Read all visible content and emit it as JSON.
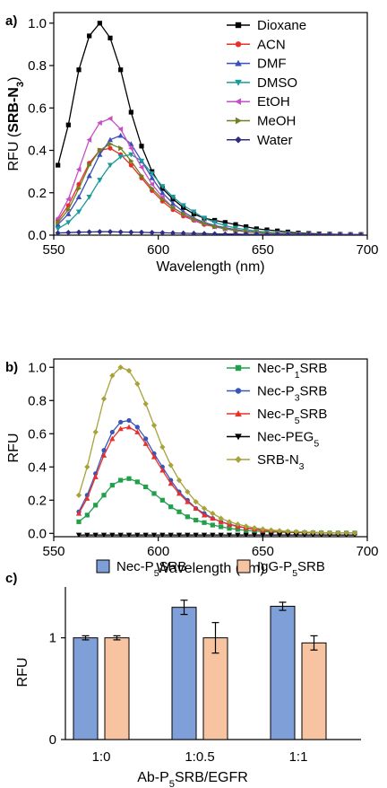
{
  "chart_data": [
    {
      "panel_label": "a)",
      "type": "line",
      "xlabel": "Wavelength (nm)",
      "ylabel_parts": [
        "RFU (",
        "SRB-N",
        "3",
        ")"
      ],
      "xlim": [
        550,
        700
      ],
      "ylim": [
        0,
        1.05
      ],
      "xticks": [
        550,
        600,
        650,
        700
      ],
      "yticks": [
        0.0,
        0.2,
        0.4,
        0.6,
        0.8,
        1.0
      ],
      "ytick_labels": [
        "0.0",
        "0.2",
        "0.4",
        "0.6",
        "0.8",
        "1.0"
      ],
      "legend": "top-right",
      "series": [
        {
          "name": "Dioxane",
          "color": "#000000",
          "marker": "square",
          "x": [
            552,
            557,
            562,
            567,
            572,
            577,
            582,
            587,
            592,
            597,
            602,
            607,
            612,
            617,
            622,
            627,
            632,
            637,
            642,
            647,
            652,
            657,
            662,
            667,
            672,
            677,
            682,
            687,
            692,
            697
          ],
          "y": [
            0.33,
            0.52,
            0.78,
            0.94,
            1.0,
            0.93,
            0.78,
            0.58,
            0.42,
            0.3,
            0.22,
            0.17,
            0.13,
            0.1,
            0.08,
            0.07,
            0.06,
            0.05,
            0.04,
            0.03,
            0.025,
            0.02,
            0.015,
            0.01,
            0.008,
            0.006,
            0.005,
            0.004,
            0.003,
            0.003
          ]
        },
        {
          "name": "ACN",
          "color": "#e8302a",
          "marker": "circle",
          "x": [
            552,
            557,
            562,
            567,
            572,
            577,
            582,
            587,
            592,
            597,
            602,
            607,
            612,
            617,
            622,
            627,
            632,
            637,
            642,
            647,
            652,
            657,
            662,
            667,
            672,
            677,
            682,
            687,
            692,
            697
          ],
          "y": [
            0.07,
            0.14,
            0.24,
            0.34,
            0.4,
            0.41,
            0.38,
            0.33,
            0.27,
            0.21,
            0.16,
            0.12,
            0.09,
            0.07,
            0.05,
            0.04,
            0.03,
            0.022,
            0.016,
            0.012,
            0.009,
            0.007,
            0.005,
            0.004,
            0.003,
            0.003,
            0.002,
            0.002,
            0.002,
            0.002
          ]
        },
        {
          "name": "DMF",
          "color": "#3b4fb8",
          "marker": "triangle-up",
          "x": [
            552,
            557,
            562,
            567,
            572,
            577,
            582,
            587,
            592,
            597,
            602,
            607,
            612,
            617,
            622,
            627,
            632,
            637,
            642,
            647,
            652,
            657,
            662,
            667,
            672,
            677,
            682,
            687,
            692,
            697
          ],
          "y": [
            0.05,
            0.1,
            0.18,
            0.28,
            0.38,
            0.45,
            0.47,
            0.43,
            0.35,
            0.27,
            0.2,
            0.15,
            0.11,
            0.08,
            0.06,
            0.045,
            0.035,
            0.026,
            0.019,
            0.014,
            0.01,
            0.008,
            0.006,
            0.004,
            0.003,
            0.003,
            0.002,
            0.002,
            0.002,
            0.002
          ]
        },
        {
          "name": "DMSO",
          "color": "#1a9a9a",
          "marker": "triangle-down",
          "x": [
            552,
            557,
            562,
            567,
            572,
            577,
            582,
            587,
            592,
            597,
            602,
            607,
            612,
            617,
            622,
            627,
            632,
            637,
            642,
            647,
            652,
            657,
            662,
            667,
            672,
            677,
            682,
            687,
            692,
            697
          ],
          "y": [
            0.03,
            0.06,
            0.11,
            0.18,
            0.26,
            0.33,
            0.37,
            0.38,
            0.35,
            0.29,
            0.23,
            0.18,
            0.14,
            0.11,
            0.08,
            0.06,
            0.045,
            0.034,
            0.026,
            0.019,
            0.014,
            0.01,
            0.008,
            0.006,
            0.004,
            0.003,
            0.003,
            0.002,
            0.002,
            0.002
          ]
        },
        {
          "name": "EtOH",
          "color": "#c64fc6",
          "marker": "triangle-left",
          "x": [
            552,
            557,
            562,
            567,
            572,
            577,
            582,
            587,
            592,
            597,
            602,
            607,
            612,
            617,
            622,
            627,
            632,
            637,
            642,
            647,
            652,
            657,
            662,
            667,
            672,
            677,
            682,
            687,
            692,
            697
          ],
          "y": [
            0.08,
            0.17,
            0.31,
            0.45,
            0.53,
            0.55,
            0.5,
            0.41,
            0.32,
            0.24,
            0.18,
            0.13,
            0.1,
            0.07,
            0.055,
            0.04,
            0.03,
            0.022,
            0.016,
            0.012,
            0.009,
            0.007,
            0.005,
            0.004,
            0.003,
            0.003,
            0.002,
            0.002,
            0.002,
            0.002
          ]
        },
        {
          "name": "MeOH",
          "color": "#6f7f22",
          "marker": "triangle-right",
          "x": [
            552,
            557,
            562,
            567,
            572,
            577,
            582,
            587,
            592,
            597,
            602,
            607,
            612,
            617,
            622,
            627,
            632,
            637,
            642,
            647,
            652,
            657,
            662,
            667,
            672,
            677,
            682,
            687,
            692,
            697
          ],
          "y": [
            0.06,
            0.12,
            0.22,
            0.33,
            0.4,
            0.43,
            0.41,
            0.35,
            0.28,
            0.22,
            0.17,
            0.13,
            0.1,
            0.075,
            0.055,
            0.04,
            0.03,
            0.023,
            0.017,
            0.013,
            0.009,
            0.007,
            0.005,
            0.004,
            0.003,
            0.003,
            0.002,
            0.002,
            0.002,
            0.002
          ]
        },
        {
          "name": "Water",
          "color": "#2d2d82",
          "marker": "diamond",
          "x": [
            552,
            557,
            562,
            567,
            572,
            577,
            582,
            587,
            592,
            597,
            602,
            607,
            612,
            617,
            622,
            627,
            632,
            637,
            642,
            647,
            652,
            657,
            662,
            667,
            672,
            677,
            682,
            687,
            692,
            697
          ],
          "y": [
            0.01,
            0.012,
            0.014,
            0.015,
            0.016,
            0.016,
            0.015,
            0.014,
            0.013,
            0.012,
            0.011,
            0.01,
            0.009,
            0.008,
            0.007,
            0.006,
            0.005,
            0.005,
            0.004,
            0.004,
            0.003,
            0.003,
            0.003,
            0.002,
            0.002,
            0.002,
            0.002,
            0.002,
            0.002,
            0.002
          ]
        }
      ]
    },
    {
      "panel_label": "b)",
      "type": "line",
      "xlabel": "Wavelength (nm)",
      "ylabel_parts": [
        "RFU"
      ],
      "xlim": [
        550,
        700
      ],
      "ylim": [
        -0.02,
        1.05
      ],
      "xticks": [
        550,
        600,
        650,
        700
      ],
      "yticks": [
        0.0,
        0.2,
        0.4,
        0.6,
        0.8,
        1.0
      ],
      "ytick_labels": [
        "0.0",
        "0.2",
        "0.4",
        "0.6",
        "0.8",
        "1.0"
      ],
      "legend": "top-right",
      "series": [
        {
          "name_parts": [
            "Nec-P",
            "1",
            "SRB"
          ],
          "color": "#21a04b",
          "marker": "square",
          "x": [
            562,
            566,
            570,
            574,
            578,
            582,
            586,
            590,
            594,
            598,
            602,
            606,
            610,
            614,
            618,
            622,
            626,
            630,
            634,
            638,
            642,
            646,
            650,
            654,
            658,
            662,
            666,
            670,
            674,
            678,
            682,
            686,
            690,
            694
          ],
          "y": [
            0.07,
            0.11,
            0.17,
            0.23,
            0.29,
            0.32,
            0.33,
            0.31,
            0.28,
            0.24,
            0.2,
            0.16,
            0.13,
            0.1,
            0.08,
            0.065,
            0.05,
            0.04,
            0.03,
            0.024,
            0.018,
            0.014,
            0.011,
            0.009,
            0.007,
            0.006,
            0.005,
            0.004,
            0.003,
            0.003,
            0.002,
            0.002,
            0.002,
            0.002
          ]
        },
        {
          "name_parts": [
            "Nec-P",
            "3",
            "SRB"
          ],
          "color": "#3a55b8",
          "marker": "circle",
          "x": [
            562,
            566,
            570,
            574,
            578,
            582,
            586,
            590,
            594,
            598,
            602,
            606,
            610,
            614,
            618,
            622,
            626,
            630,
            634,
            638,
            642,
            646,
            650,
            654,
            658,
            662,
            666,
            670,
            674,
            678,
            682,
            686,
            690,
            694
          ],
          "y": [
            0.13,
            0.23,
            0.36,
            0.5,
            0.61,
            0.67,
            0.68,
            0.64,
            0.57,
            0.48,
            0.4,
            0.32,
            0.25,
            0.2,
            0.15,
            0.12,
            0.09,
            0.07,
            0.055,
            0.043,
            0.033,
            0.026,
            0.02,
            0.016,
            0.012,
            0.01,
            0.008,
            0.006,
            0.005,
            0.004,
            0.003,
            0.003,
            0.002,
            0.002
          ]
        },
        {
          "name_parts": [
            "Nec-P",
            "5",
            "SRB"
          ],
          "color": "#e8302a",
          "marker": "triangle-up",
          "x": [
            562,
            566,
            570,
            574,
            578,
            582,
            586,
            590,
            594,
            598,
            602,
            606,
            610,
            614,
            618,
            622,
            626,
            630,
            634,
            638,
            642,
            646,
            650,
            654,
            658,
            662,
            666,
            670,
            674,
            678,
            682,
            686,
            690,
            694
          ],
          "y": [
            0.12,
            0.21,
            0.34,
            0.47,
            0.57,
            0.63,
            0.64,
            0.61,
            0.54,
            0.46,
            0.38,
            0.3,
            0.24,
            0.19,
            0.15,
            0.11,
            0.09,
            0.07,
            0.053,
            0.041,
            0.032,
            0.025,
            0.019,
            0.015,
            0.012,
            0.009,
            0.007,
            0.006,
            0.005,
            0.004,
            0.003,
            0.003,
            0.002,
            0.002
          ]
        },
        {
          "name_parts": [
            "Nec-PEG",
            "5",
            ""
          ],
          "color": "#000000",
          "marker": "triangle-down",
          "x": [
            562,
            566,
            570,
            574,
            578,
            582,
            586,
            590,
            594,
            598,
            602,
            606,
            610,
            614,
            618,
            622,
            626,
            630,
            634,
            638,
            642,
            646,
            650,
            654,
            658,
            662,
            666,
            670,
            674,
            678,
            682,
            686,
            690,
            694
          ],
          "y": [
            -0.01,
            -0.01,
            -0.01,
            -0.01,
            -0.01,
            -0.01,
            -0.01,
            -0.01,
            -0.01,
            -0.01,
            -0.01,
            -0.01,
            -0.01,
            -0.01,
            -0.01,
            -0.01,
            -0.01,
            -0.01,
            -0.01,
            -0.01,
            -0.01,
            -0.01,
            -0.01,
            -0.01,
            -0.01,
            -0.01,
            -0.01,
            -0.01,
            -0.01,
            -0.01,
            -0.01,
            -0.01,
            -0.01,
            -0.01
          ]
        },
        {
          "name_parts": [
            "SRB-N",
            "3",
            ""
          ],
          "color": "#a8a23a",
          "marker": "diamond",
          "x": [
            562,
            566,
            570,
            574,
            578,
            582,
            586,
            590,
            594,
            598,
            602,
            606,
            610,
            614,
            618,
            622,
            626,
            630,
            634,
            638,
            642,
            646,
            650,
            654,
            658,
            662,
            666,
            670,
            674,
            678,
            682,
            686,
            690,
            694
          ],
          "y": [
            0.23,
            0.4,
            0.61,
            0.81,
            0.95,
            1.0,
            0.98,
            0.9,
            0.78,
            0.65,
            0.52,
            0.41,
            0.32,
            0.25,
            0.19,
            0.15,
            0.12,
            0.09,
            0.07,
            0.055,
            0.043,
            0.033,
            0.026,
            0.02,
            0.016,
            0.012,
            0.01,
            0.008,
            0.006,
            0.005,
            0.004,
            0.003,
            0.003,
            0.002
          ]
        }
      ]
    },
    {
      "panel_label": "c)",
      "type": "bar",
      "xlabel_parts": [
        "Ab-P",
        "5",
        "SRB/EGFR"
      ],
      "ylabel_parts": [
        "RFU"
      ],
      "ylim": [
        0,
        1.5
      ],
      "yticks": [
        0,
        1
      ],
      "ytick_labels": [
        "0",
        "1"
      ],
      "categories": [
        "1:0",
        "1:0.5",
        "1:1"
      ],
      "legend": "top",
      "series": [
        {
          "name_parts": [
            "Nec-P",
            "5",
            "SRB"
          ],
          "color": "#7f9fd8",
          "values": [
            1.0,
            1.3,
            1.31
          ],
          "errors": [
            0.02,
            0.07,
            0.04
          ]
        },
        {
          "name_parts": [
            "IgG-P",
            "5",
            "SRB"
          ],
          "color": "#f7c3a1",
          "values": [
            1.0,
            1.0,
            0.95
          ],
          "errors": [
            0.02,
            0.15,
            0.07
          ]
        }
      ]
    }
  ]
}
